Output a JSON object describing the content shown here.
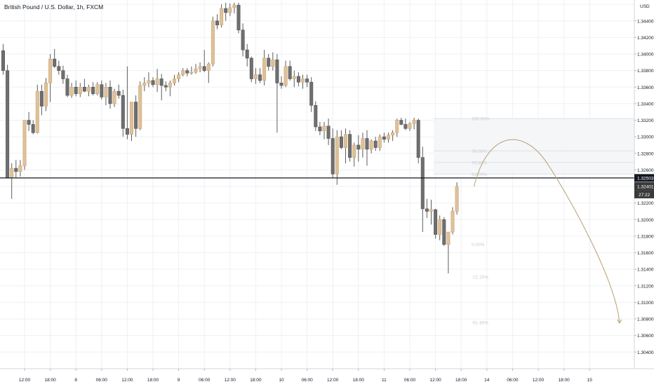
{
  "title": "British Pound / U.S. Dollar, 1h, FXCM",
  "chart_data": {
    "type": "candlestick",
    "symbol": "GBPUSD",
    "currency_label": "USD",
    "colors": {
      "up": "#dfc198",
      "down": "#6f6f6f",
      "wick": "#5e5e5e",
      "grid": "#eef0f3",
      "price_line": "#131722",
      "projection": "#b8a072",
      "fib": "#c9cbd1"
    },
    "y_axis": {
      "min": 1.3025,
      "max": 1.3461,
      "ticks": [
        "1.34600",
        "1.34400",
        "1.34200",
        "1.34000",
        "1.33800",
        "1.33600",
        "1.33400",
        "1.33200",
        "1.33000",
        "1.32800",
        "1.32600",
        "1.32400",
        "1.32200",
        "1.32000",
        "1.31800",
        "1.31600",
        "1.31400",
        "1.31200",
        "1.31000",
        "1.30800",
        "1.30600",
        "1.30400"
      ]
    },
    "x_axis": {
      "labels": [
        {
          "i": 5,
          "text": "12:00"
        },
        {
          "i": 11,
          "text": "18:00"
        },
        {
          "i": 17,
          "text": "8"
        },
        {
          "i": 23,
          "text": "06:00"
        },
        {
          "i": 29,
          "text": "12:00"
        },
        {
          "i": 35,
          "text": "18:00"
        },
        {
          "i": 41,
          "text": "9"
        },
        {
          "i": 47,
          "text": "06:00"
        },
        {
          "i": 53,
          "text": "12:00"
        },
        {
          "i": 59,
          "text": "18:00"
        },
        {
          "i": 65,
          "text": "10"
        },
        {
          "i": 71,
          "text": "06:00"
        },
        {
          "i": 77,
          "text": "12:00"
        },
        {
          "i": 83,
          "text": "18:00"
        },
        {
          "i": 89,
          "text": "11"
        },
        {
          "i": 95,
          "text": "06:00"
        },
        {
          "i": 101,
          "text": "12:00"
        },
        {
          "i": 107,
          "text": "18:00"
        },
        {
          "i": 113,
          "text": "14"
        },
        {
          "i": 119,
          "text": "06:00"
        },
        {
          "i": 125,
          "text": "12:00"
        },
        {
          "i": 131,
          "text": "18:00"
        },
        {
          "i": 137,
          "text": "15"
        }
      ]
    },
    "candles": [
      [
        1.3404,
        1.3412,
        1.3375,
        1.338
      ],
      [
        1.338,
        1.3387,
        1.325,
        1.325
      ],
      [
        1.325,
        1.3268,
        1.3225,
        1.3262
      ],
      [
        1.3262,
        1.3272,
        1.325,
        1.3258
      ],
      [
        1.3258,
        1.3272,
        1.3252,
        1.3265
      ],
      [
        1.3265,
        1.332,
        1.326,
        1.332
      ],
      [
        1.332,
        1.333,
        1.3307,
        1.3315
      ],
      [
        1.3315,
        1.332,
        1.3303,
        1.3305
      ],
      [
        1.3305,
        1.3363,
        1.3304,
        1.3355
      ],
      [
        1.3355,
        1.3363,
        1.3326,
        1.3337
      ],
      [
        1.3337,
        1.3371,
        1.3331,
        1.3365
      ],
      [
        1.3365,
        1.34,
        1.3342,
        1.3394
      ],
      [
        1.3394,
        1.3406,
        1.3383,
        1.3385
      ],
      [
        1.3385,
        1.3392,
        1.3375,
        1.338
      ],
      [
        1.338,
        1.3386,
        1.3364,
        1.337
      ],
      [
        1.337,
        1.3375,
        1.3348,
        1.335
      ],
      [
        1.335,
        1.3365,
        1.3347,
        1.336
      ],
      [
        1.336,
        1.3368,
        1.3349,
        1.3352
      ],
      [
        1.3352,
        1.3365,
        1.3348,
        1.336
      ],
      [
        1.336,
        1.337,
        1.3354,
        1.3355
      ],
      [
        1.3355,
        1.3363,
        1.3349,
        1.336
      ],
      [
        1.336,
        1.3366,
        1.335,
        1.3352
      ],
      [
        1.3352,
        1.3366,
        1.335,
        1.3363
      ],
      [
        1.3363,
        1.3368,
        1.3345,
        1.3348
      ],
      [
        1.3348,
        1.3365,
        1.3338,
        1.336
      ],
      [
        1.336,
        1.3368,
        1.3334,
        1.334
      ],
      [
        1.334,
        1.3358,
        1.3336,
        1.3355
      ],
      [
        1.3355,
        1.3363,
        1.3346,
        1.335
      ],
      [
        1.335,
        1.3357,
        1.33,
        1.331
      ],
      [
        1.331,
        1.3385,
        1.3297,
        1.3303
      ],
      [
        1.3303,
        1.334,
        1.3295,
        1.3342
      ],
      [
        1.3342,
        1.335,
        1.33,
        1.331
      ],
      [
        1.331,
        1.3367,
        1.3308,
        1.3362
      ],
      [
        1.3362,
        1.3372,
        1.3355,
        1.3365
      ],
      [
        1.3365,
        1.3378,
        1.336,
        1.3368
      ],
      [
        1.3368,
        1.3372,
        1.336,
        1.3363
      ],
      [
        1.3363,
        1.3382,
        1.3354,
        1.337
      ],
      [
        1.337,
        1.3376,
        1.3344,
        1.3362
      ],
      [
        1.3362,
        1.3367,
        1.3355,
        1.336
      ],
      [
        1.336,
        1.3368,
        1.3349,
        1.3365
      ],
      [
        1.3365,
        1.3375,
        1.3362,
        1.337
      ],
      [
        1.337,
        1.3378,
        1.3366,
        1.3375
      ],
      [
        1.3375,
        1.3383,
        1.3373,
        1.338
      ],
      [
        1.338,
        1.3383,
        1.3373,
        1.3377
      ],
      [
        1.3377,
        1.3385,
        1.3375,
        1.3378
      ],
      [
        1.3378,
        1.3388,
        1.3376,
        1.3382
      ],
      [
        1.3382,
        1.339,
        1.3378,
        1.3385
      ],
      [
        1.3385,
        1.3405,
        1.3378,
        1.338
      ],
      [
        1.338,
        1.339,
        1.3365,
        1.3388
      ],
      [
        1.3388,
        1.3445,
        1.3385,
        1.344
      ],
      [
        1.344,
        1.3448,
        1.343,
        1.3435
      ],
      [
        1.3435,
        1.346,
        1.3432,
        1.3455
      ],
      [
        1.3455,
        1.3462,
        1.344,
        1.345
      ],
      [
        1.345,
        1.3461,
        1.3446,
        1.3456
      ],
      [
        1.3456,
        1.3462,
        1.3449,
        1.3459
      ],
      [
        1.3459,
        1.3462,
        1.3425,
        1.3429
      ],
      [
        1.3429,
        1.3437,
        1.3397,
        1.3405
      ],
      [
        1.3405,
        1.3412,
        1.3385,
        1.3395
      ],
      [
        1.3395,
        1.3397,
        1.3366,
        1.337
      ],
      [
        1.337,
        1.3383,
        1.3364,
        1.3375
      ],
      [
        1.3375,
        1.3383,
        1.3365,
        1.3368
      ],
      [
        1.3368,
        1.3405,
        1.3362,
        1.3395
      ],
      [
        1.3395,
        1.34,
        1.338,
        1.3385
      ],
      [
        1.3385,
        1.3402,
        1.338,
        1.3393
      ],
      [
        1.3393,
        1.34,
        1.3305,
        1.3365
      ],
      [
        1.3365,
        1.3373,
        1.3358,
        1.3362
      ],
      [
        1.3362,
        1.3392,
        1.336,
        1.3385
      ],
      [
        1.3385,
        1.3392,
        1.3368,
        1.337
      ],
      [
        1.337,
        1.338,
        1.336,
        1.3373
      ],
      [
        1.3373,
        1.3378,
        1.3361,
        1.3366
      ],
      [
        1.3366,
        1.3375,
        1.3358,
        1.337
      ],
      [
        1.337,
        1.3375,
        1.336,
        1.3366
      ],
      [
        1.3366,
        1.3372,
        1.333,
        1.3338
      ],
      [
        1.3338,
        1.3343,
        1.3307,
        1.3312
      ],
      [
        1.3312,
        1.3318,
        1.3302,
        1.3307
      ],
      [
        1.3307,
        1.3318,
        1.3297,
        1.3313
      ],
      [
        1.3313,
        1.3322,
        1.329,
        1.3298
      ],
      [
        1.3298,
        1.331,
        1.3251,
        1.3255
      ],
      [
        1.3255,
        1.3308,
        1.3242,
        1.33
      ],
      [
        1.33,
        1.3308,
        1.3285,
        1.3287
      ],
      [
        1.3287,
        1.331,
        1.3268,
        1.3303
      ],
      [
        1.3303,
        1.3308,
        1.327,
        1.3275
      ],
      [
        1.3275,
        1.3293,
        1.3264,
        1.329
      ],
      [
        1.329,
        1.3302,
        1.327,
        1.3285
      ],
      [
        1.3285,
        1.3305,
        1.3275,
        1.3298
      ],
      [
        1.3298,
        1.3308,
        1.3265,
        1.3285
      ],
      [
        1.3285,
        1.3297,
        1.328,
        1.3295
      ],
      [
        1.3295,
        1.33,
        1.3283,
        1.3287
      ],
      [
        1.3287,
        1.3303,
        1.3283,
        1.33
      ],
      [
        1.33,
        1.3305,
        1.3293,
        1.3297
      ],
      [
        1.3297,
        1.3305,
        1.3293,
        1.3302
      ],
      [
        1.3302,
        1.3308,
        1.3295,
        1.3305
      ],
      [
        1.3305,
        1.3322,
        1.33,
        1.332
      ],
      [
        1.332,
        1.3323,
        1.3314,
        1.3315
      ],
      [
        1.3315,
        1.3322,
        1.3308,
        1.331
      ],
      [
        1.331,
        1.3318,
        1.3307,
        1.3316
      ],
      [
        1.3316,
        1.3323,
        1.3309,
        1.332
      ],
      [
        1.332,
        1.3322,
        1.3268,
        1.3275
      ],
      [
        1.3275,
        1.3288,
        1.3185,
        1.3213
      ],
      [
        1.3213,
        1.3225,
        1.3202,
        1.321
      ],
      [
        1.321,
        1.3224,
        1.3194,
        1.3212
      ],
      [
        1.3212,
        1.3213,
        1.3177,
        1.3182
      ],
      [
        1.3182,
        1.3205,
        1.3175,
        1.32
      ],
      [
        1.32,
        1.3203,
        1.3168,
        1.317
      ],
      [
        1.317,
        1.3185,
        1.3135,
        1.3185
      ],
      [
        1.3185,
        1.3215,
        1.3182,
        1.321
      ],
      [
        1.321,
        1.3245,
        1.3206,
        1.324
      ]
    ],
    "current_price": "1.32401",
    "countdown": "27:22",
    "horizontal_level": "1.32503",
    "fib_levels": [
      {
        "label": "100.00%",
        "price": 1.3322
      },
      {
        "label": "79.00%",
        "price": 1.3283
      },
      {
        "label": "70.50%",
        "price": 1.3269
      },
      {
        "label": "62.00%",
        "price": 1.3255
      },
      {
        "label": "0.00%",
        "price": 1.317
      },
      {
        "label": "-22.20%",
        "price": 1.3131
      },
      {
        "label": "-61.80%",
        "price": 1.3076
      }
    ],
    "projection": {
      "start": [
        110,
        1.324
      ],
      "peak": [
        120,
        1.3287
      ],
      "end": [
        144,
        1.3075
      ]
    }
  }
}
